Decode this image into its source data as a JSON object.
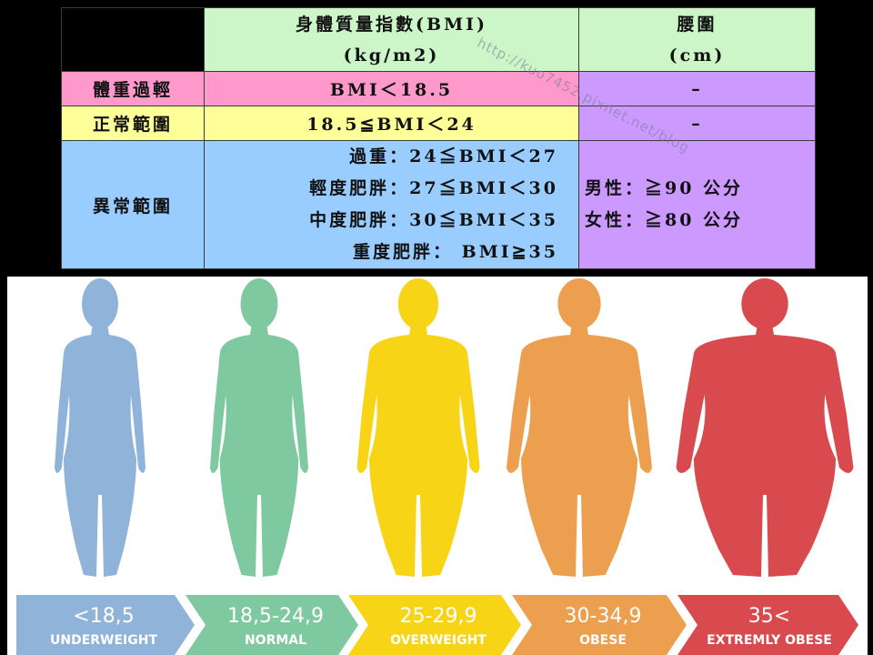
{
  "table": {
    "header": {
      "bmi_title": "身體質量指數(BMI)",
      "bmi_unit": "(kg/m2)",
      "waist_title": "腰圍",
      "waist_unit": "(cm)"
    },
    "rows": [
      {
        "label": "體重過輕",
        "bmi": "BMI＜18.5",
        "waist": "–"
      },
      {
        "label": "正常範圍",
        "bmi": "18.5≦BMI＜24",
        "waist": "–"
      },
      {
        "label": "異常範圍",
        "bmi_lines": [
          "過重：24≦BMI＜27",
          "輕度肥胖：27≦BMI＜30",
          "中度肥胖：30≦BMI＜35",
          "重度肥胖：    BMI≧35"
        ],
        "waist_lines": [
          "男性：≧90 公分",
          "女性：≧80 公分"
        ]
      }
    ],
    "watermark": "http://kuo7452.pixnet.net/blog",
    "colors": {
      "header": "#ccf5c8",
      "underweight": "#ff99cc",
      "normal": "#ffff99",
      "abnormal": "#99ccff",
      "waist": "#cc99ff"
    }
  },
  "categories": [
    {
      "range": "<18,5",
      "name": "UNDERWEIGHT",
      "color": "#8fb3d9"
    },
    {
      "range": "18,5-24,9",
      "name": "NORMAL",
      "color": "#7fc9a0"
    },
    {
      "range": "25-29,9",
      "name": "OVERWEIGHT",
      "color": "#f7d416"
    },
    {
      "range": "30-34,9",
      "name": "OBESE",
      "color": "#eca04f"
    },
    {
      "range": "35<",
      "name": "EXTREMLY OBESE",
      "color": "#d94a4e"
    }
  ]
}
